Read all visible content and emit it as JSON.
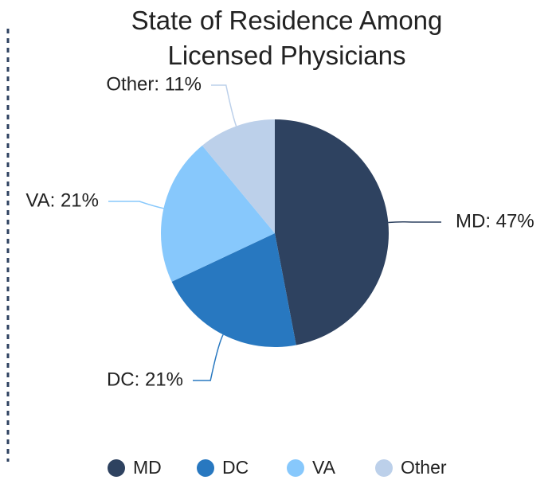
{
  "chart_data": {
    "type": "pie",
    "title": "State of Residence Among Licensed Physicians",
    "categories": [
      "MD",
      "DC",
      "VA",
      "Other"
    ],
    "values": [
      47,
      21,
      21,
      11
    ],
    "value_labels": [
      "MD: 47%",
      "DC: 21%",
      "VA: 21%",
      "Other: 11%"
    ],
    "colors": [
      "#2e4260",
      "#2878c0",
      "#87c8fc",
      "#bcd0ea"
    ],
    "legend": "bottom"
  }
}
